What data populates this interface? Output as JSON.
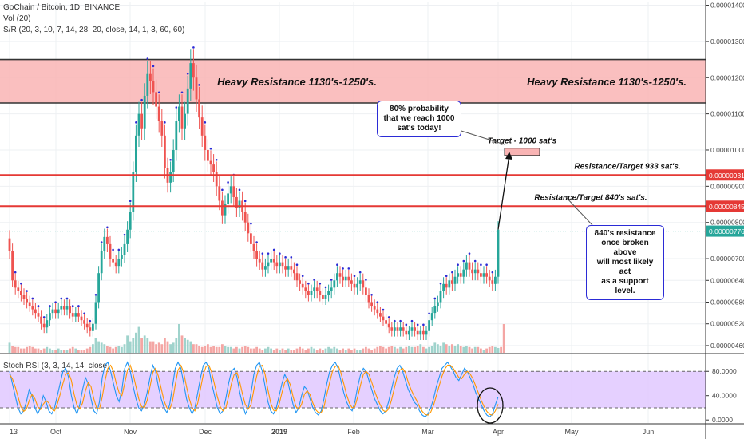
{
  "header": {
    "title": "GoChain / Bitcoin, 1D, BINANCE",
    "vol": "Vol (20)",
    "sr": "S/R (20, 3, 10, 7, 14, 28, 20, close, 14, 1, 3, 60, 60)"
  },
  "colors": {
    "up": "#26a69a",
    "down": "#ef5350",
    "vol_up": "#9fd3cc",
    "vol_down": "#f4a6a4",
    "sr_dot": "#2b2bd6",
    "resistance_line": "#e53935",
    "zone_fill": "#f9b4b4",
    "rsi_k": "#2196f3",
    "rsi_d": "#ff9800",
    "rsi_band": "#e1c8ff",
    "last_price": "#26a69a"
  },
  "chart_data": [
    {
      "type": "candlestick",
      "title": "GoChain / Bitcoin, 1D, BINANCE",
      "y_ticks": [
        "0.00001400",
        "0.00001300",
        "0.00001200",
        "0.00001100",
        "0.00001000",
        "0.00000900",
        "0.00000800",
        "0.00000700",
        "0.00000640",
        "0.00000580",
        "0.00000520",
        "0.00000460"
      ],
      "x_ticks": [
        "13",
        "Oct",
        "Nov",
        "Dec",
        "2019",
        "Feb",
        "Mar",
        "Apr",
        "May",
        "Jun"
      ],
      "ylim": [
        4.4e-06,
        1.41e-05
      ],
      "resistance_zone": {
        "low": 1.13e-05,
        "high": 1.25e-05,
        "labels": [
          "Heavy Resistance 1130's-1250's.",
          "Heavy Resistance 1130's-1250's."
        ]
      },
      "resistance_lines": [
        {
          "value": 9.31e-06,
          "label": "Resistance/Target 933 sat's.",
          "price_tag": "0.00000931"
        },
        {
          "value": 8.45e-06,
          "label": "Resistance/Target 840's sat's.",
          "price_tag": "0.00000845"
        }
      ],
      "last_price": {
        "value": 7.76e-06,
        "tag": "0.00000776"
      },
      "target_box": {
        "low": 9.85e-06,
        "high": 1.005e-05,
        "label": "Target - 1000 sat's"
      },
      "annotations": [
        {
          "id": "prob",
          "text": "80% probability\nthat we reach 1000\nsat's today!"
        },
        {
          "id": "support",
          "text": "840's resistance\nonce broken above\nwill most likely act\nas a support level."
        }
      ],
      "close_series": [
        7.2e-06,
        6.4e-06,
        6.2e-06,
        6.1e-06,
        6e-06,
        5.9e-06,
        5.8e-06,
        5.7e-06,
        5.6e-06,
        5.5e-06,
        5.4e-06,
        5.2e-06,
        5.1e-06,
        5.3e-06,
        5.5e-06,
        5.6e-06,
        5.5e-06,
        5.6e-06,
        5.7e-06,
        5.6e-06,
        5.7e-06,
        5.5e-06,
        5.4e-06,
        5.5e-06,
        5.4e-06,
        5.3e-06,
        5.2e-06,
        5.1e-06,
        5e-06,
        5.2e-06,
        5.8e-06,
        6.6e-06,
        7.2e-06,
        7.6e-06,
        7.4e-06,
        7e-06,
        6.9e-06,
        6.8e-06,
        7e-06,
        7.1e-06,
        7.4e-06,
        7.8e-06,
        8.3e-06,
        9.4e-06,
        1.04e-05,
        1.1e-05,
        1.06e-05,
        1.15e-05,
        1.21e-05,
        1.19e-05,
        1.16e-05,
        1.12e-05,
        1.08e-05,
        1.04e-05,
        9.5e-06,
        9.1e-06,
        9.4e-06,
        1e-05,
        1.08e-05,
        1.12e-05,
        1.06e-05,
        1.1e-05,
        1.17e-05,
        1.24e-05,
        1.2e-05,
        1.14e-05,
        1.09e-05,
        1.04e-05,
        1e-05,
        9.7e-06,
        9.6e-06,
        9.4e-06,
        9e-06,
        8.6e-06,
        8.2e-06,
        8.5e-06,
        8.8e-06,
        9e-06,
        8.7e-06,
        8.4e-06,
        8.6e-06,
        8.3e-06,
        8e-06,
        7.7e-06,
        7.4e-06,
        7.2e-06,
        7e-06,
        6.9e-06,
        6.7e-06,
        6.8e-06,
        6.9e-06,
        7e-06,
        6.9e-06,
        6.8e-06,
        6.9e-06,
        6.8e-06,
        6.7e-06,
        6.8e-06,
        6.7e-06,
        6.6e-06,
        6.4e-06,
        6.3e-06,
        6.2e-06,
        6.1e-06,
        6e-06,
        6.1e-06,
        6.2e-06,
        6.1e-06,
        6e-06,
        5.9e-06,
        6e-06,
        6.1e-06,
        6.2e-06,
        6.4e-06,
        6.6e-06,
        6.5e-06,
        6.4e-06,
        6.5e-06,
        6.4e-06,
        6.3e-06,
        6.2e-06,
        6.3e-06,
        6.4e-06,
        6.2e-06,
        6e-06,
        5.8e-06,
        5.7e-06,
        5.6e-06,
        5.5e-06,
        5.4e-06,
        5.3e-06,
        5.2e-06,
        5.1e-06,
        5e-06,
        5.1e-06,
        5e-06,
        5.1e-06,
        5e-06,
        4.9e-06,
        5e-06,
        5.1e-06,
        5e-06,
        4.9e-06,
        5e-06,
        4.9e-06,
        5e-06,
        5.3e-06,
        5.5e-06,
        5.7e-06,
        5.8e-06,
        6.1e-06,
        6.3e-06,
        6.2e-06,
        6.4e-06,
        6.3e-06,
        6.5e-06,
        6.6e-06,
        6.5e-06,
        6.7e-06,
        6.9e-06,
        6.7e-06,
        6.6e-06,
        6.7e-06,
        6.6e-06,
        6.5e-06,
        6.6e-06,
        6.5e-06,
        6.4e-06,
        6.3e-06,
        6.5e-06,
        7.8e-06
      ],
      "volume_series": [
        0.35,
        0.25,
        0.2,
        0.2,
        0.15,
        0.15,
        0.2,
        0.25,
        0.2,
        0.15,
        0.15,
        0.1,
        0.15,
        0.2,
        0.15,
        0.1,
        0.1,
        0.15,
        0.1,
        0.1,
        0.1,
        0.15,
        0.2,
        0.15,
        0.1,
        0.1,
        0.1,
        0.15,
        0.2,
        0.3,
        0.5,
        0.4,
        0.35,
        0.3,
        0.25,
        0.2,
        0.15,
        0.2,
        0.25,
        0.2,
        0.3,
        0.6,
        0.4,
        0.5,
        0.7,
        0.9,
        0.5,
        0.6,
        0.5,
        0.4,
        0.4,
        0.3,
        0.35,
        0.3,
        0.5,
        0.4,
        0.3,
        0.35,
        0.5,
        1.0,
        0.6,
        0.5,
        0.45,
        0.4,
        0.3,
        0.3,
        0.25,
        0.2,
        0.25,
        0.3,
        0.2,
        0.25,
        0.2,
        0.2,
        0.3,
        0.25,
        0.2,
        0.2,
        0.15,
        0.2,
        0.15,
        0.2,
        0.25,
        0.2,
        0.15,
        0.15,
        0.2,
        0.15,
        0.1,
        0.15,
        0.2,
        0.15,
        0.1,
        0.15,
        0.1,
        0.15,
        0.1,
        0.15,
        0.1,
        0.1,
        0.15,
        0.2,
        0.15,
        0.1,
        0.15,
        0.2,
        0.15,
        0.1,
        0.15,
        0.1,
        0.15,
        0.2,
        0.15,
        0.2,
        0.15,
        0.1,
        0.15,
        0.1,
        0.15,
        0.1,
        0.15,
        0.1,
        0.1,
        0.15,
        0.2,
        0.15,
        0.1,
        0.15,
        0.2,
        0.25,
        0.2,
        0.15,
        0.2,
        0.25,
        0.2,
        0.15,
        0.2,
        0.15,
        0.2,
        0.25,
        0.2,
        0.2,
        0.25,
        0.3,
        0.2,
        0.15,
        0.2,
        0.25,
        0.35,
        0.3,
        0.25,
        0.35,
        0.3,
        0.25,
        0.3,
        0.25,
        0.3,
        0.25,
        0.2,
        0.25,
        0.2,
        0.15,
        0.2,
        0.2,
        0.15,
        0.1,
        0.15,
        0.2,
        0.25,
        0.2,
        0.15,
        0.2,
        1.0
      ]
    },
    {
      "type": "line",
      "title": "Stoch RSI (3, 3, 14, 14, close)",
      "y_ticks": [
        "80.0000",
        "40.0000",
        "0.0000"
      ],
      "ylim": [
        -5,
        100
      ],
      "bands": [
        80,
        20
      ],
      "series": [
        {
          "name": "K",
          "values": [
            80,
            60,
            40,
            20,
            10,
            15,
            30,
            50,
            40,
            20,
            10,
            20,
            40,
            30,
            15,
            10,
            20,
            40,
            60,
            80,
            85,
            70,
            40,
            20,
            10,
            25,
            50,
            70,
            60,
            35,
            15,
            10,
            30,
            70,
            90,
            95,
            80,
            60,
            40,
            30,
            50,
            85,
            95,
            80,
            55,
            35,
            20,
            15,
            25,
            45,
            70,
            90,
            80,
            55,
            35,
            20,
            12,
            25,
            55,
            85,
            95,
            85,
            60,
            35,
            20,
            10,
            20,
            45,
            70,
            90,
            95,
            85,
            60,
            40,
            20,
            10,
            15,
            35,
            60,
            80,
            85,
            70,
            45,
            25,
            10,
            20,
            45,
            75,
            90,
            95,
            80,
            55,
            30,
            15,
            10,
            20,
            40,
            60,
            75,
            65,
            45,
            25,
            12,
            20,
            40,
            55,
            50,
            35,
            20,
            12,
            8,
            15,
            35,
            60,
            80,
            90,
            95,
            85,
            65,
            45,
            30,
            20,
            15,
            30,
            55,
            75,
            85,
            80,
            65,
            50,
            35,
            25,
            15,
            10,
            15,
            30,
            50,
            70,
            85,
            90,
            80,
            65,
            50,
            40,
            30,
            25,
            15,
            8,
            5,
            10,
            20,
            35,
            55,
            70,
            85,
            90,
            95,
            88,
            80,
            70,
            65,
            75,
            85,
            80,
            70,
            60,
            45,
            35,
            25,
            15,
            8,
            5,
            10,
            25,
            38
          ]
        },
        {
          "name": "D",
          "values": [
            75,
            68,
            55,
            38,
            22,
            14,
            18,
            32,
            42,
            35,
            22,
            17,
            26,
            32,
            28,
            18,
            15,
            26,
            42,
            60,
            75,
            78,
            65,
            42,
            24,
            18,
            28,
            48,
            62,
            55,
            35,
            20,
            18,
            38,
            65,
            85,
            90,
            80,
            60,
            45,
            40,
            60,
            82,
            90,
            75,
            55,
            35,
            22,
            20,
            32,
            55,
            78,
            85,
            72,
            52,
            32,
            20,
            17,
            30,
            58,
            82,
            90,
            78,
            55,
            35,
            20,
            15,
            28,
            52,
            75,
            88,
            90,
            78,
            58,
            38,
            22,
            15,
            20,
            38,
            60,
            75,
            78,
            62,
            42,
            25,
            18,
            25,
            50,
            72,
            88,
            90,
            75,
            50,
            28,
            16,
            15,
            26,
            45,
            62,
            68,
            58,
            38,
            22,
            17,
            26,
            42,
            48,
            42,
            28,
            17,
            12,
            12,
            22,
            42,
            62,
            80,
            88,
            90,
            78,
            60,
            42,
            28,
            20,
            22,
            38,
            58,
            75,
            80,
            75,
            62,
            48,
            35,
            25,
            16,
            13,
            18,
            32,
            52,
            70,
            82,
            85,
            78,
            62,
            50,
            40,
            32,
            22,
            14,
            9,
            8,
            13,
            24,
            40,
            56,
            72,
            84,
            90,
            90,
            85,
            78,
            70,
            68,
            75,
            80,
            76,
            68,
            56,
            44,
            32,
            22,
            14,
            9,
            8,
            15,
            26
          ]
        }
      ]
    }
  ]
}
